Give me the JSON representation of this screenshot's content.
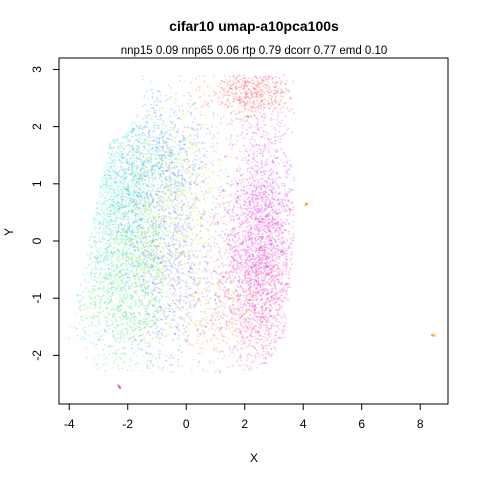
{
  "chart_data": {
    "type": "scatter",
    "title": "cifar10 umap-a10pca100s",
    "subtitle": "nnp15 0.09 nnp65 0.06 rtp 0.79 dcorr 0.77 emd 0.10",
    "xlabel": "X",
    "ylabel": "Y",
    "xlim": [
      -4.35,
      8.95
    ],
    "ylim": [
      -2.85,
      3.2
    ],
    "x_ticks": [
      -4,
      -2,
      0,
      2,
      4,
      6,
      8
    ],
    "y_ticks": [
      -2,
      -1,
      0,
      1,
      2,
      3
    ],
    "x_tick_labels": [
      "-4",
      "-2",
      "0",
      "2",
      "4",
      "6",
      "8"
    ],
    "y_tick_labels": [
      "-2",
      "-1",
      "0",
      "1",
      "2",
      "3"
    ],
    "grid": false,
    "legend": "none",
    "class_colors": [
      "#FF4040",
      "#FF9933",
      "#E6E633",
      "#66E633",
      "#33E680",
      "#33E6E6",
      "#3399FF",
      "#6666FF",
      "#CC33FF",
      "#FF3399"
    ],
    "clusters": [
      {
        "class": 9,
        "cx": 2.5,
        "cy": -0.6,
        "sx": 0.65,
        "sy": 0.9,
        "n": 1400
      },
      {
        "class": 8,
        "cx": 2.6,
        "cy": 0.3,
        "sx": 0.7,
        "sy": 1.0,
        "n": 1300
      },
      {
        "class": 0,
        "cx": 2.2,
        "cy": 2.6,
        "sx": 0.7,
        "sy": 0.25,
        "n": 500
      },
      {
        "class": 1,
        "cx": 1.2,
        "cy": -1.4,
        "sx": 0.8,
        "sy": 0.5,
        "n": 350
      },
      {
        "class": 2,
        "cx": -0.2,
        "cy": 0.8,
        "sx": 0.9,
        "sy": 0.9,
        "n": 700
      },
      {
        "class": 3,
        "cx": -1.6,
        "cy": 0.2,
        "sx": 0.9,
        "sy": 1.0,
        "n": 1000
      },
      {
        "class": 4,
        "cx": -2.2,
        "cy": -1.0,
        "sx": 0.9,
        "sy": 0.7,
        "n": 900
      },
      {
        "class": 5,
        "cx": -2.3,
        "cy": 0.9,
        "sx": 0.7,
        "sy": 0.8,
        "n": 1000
      },
      {
        "class": 6,
        "cx": -0.9,
        "cy": 1.4,
        "sx": 0.9,
        "sy": 0.6,
        "n": 800
      },
      {
        "class": 7,
        "cx": -0.5,
        "cy": -0.4,
        "sx": 1.0,
        "sy": 1.0,
        "n": 900
      }
    ],
    "outliers": [
      {
        "x": 4.1,
        "y": 0.65,
        "class": 1
      },
      {
        "x": 8.45,
        "y": -1.65,
        "class": 1
      },
      {
        "x": -2.3,
        "y": -2.55,
        "class": 9
      }
    ]
  }
}
